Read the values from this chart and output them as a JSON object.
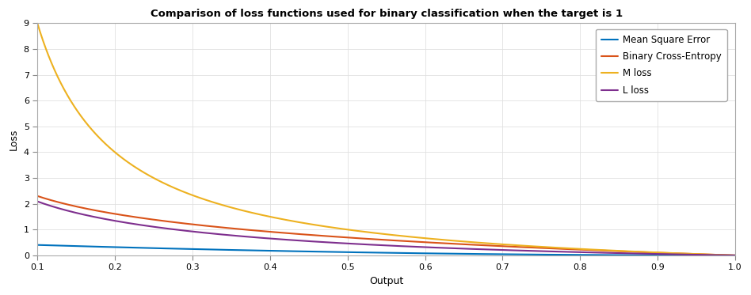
{
  "title": "Comparison of loss functions used for binary classification when the target is 1",
  "xlabel": "Output",
  "ylabel": "Loss",
  "xlim": [
    0.1,
    1.0
  ],
  "ylim": [
    0,
    9
  ],
  "yticks": [
    0,
    1,
    2,
    3,
    4,
    5,
    6,
    7,
    8,
    9
  ],
  "xticks": [
    0.1,
    0.2,
    0.3,
    0.4,
    0.5,
    0.6,
    0.7,
    0.8,
    0.9,
    1.0
  ],
  "lines": [
    {
      "label": "Mean Square Error",
      "color": "#0072BD",
      "lw": 1.5
    },
    {
      "label": "Binary Cross-Entropy",
      "color": "#D95319",
      "lw": 1.5
    },
    {
      "label": "M loss",
      "color": "#EDB120",
      "lw": 1.5
    },
    {
      "label": "L loss",
      "color": "#7E2F8E",
      "lw": 1.5
    }
  ],
  "background_color": "#FFFFFF",
  "grid_color": "#E0E0E0",
  "title_fontsize": 9.5,
  "axis_fontsize": 9,
  "tick_fontsize": 8,
  "legend_fontsize": 8.5
}
